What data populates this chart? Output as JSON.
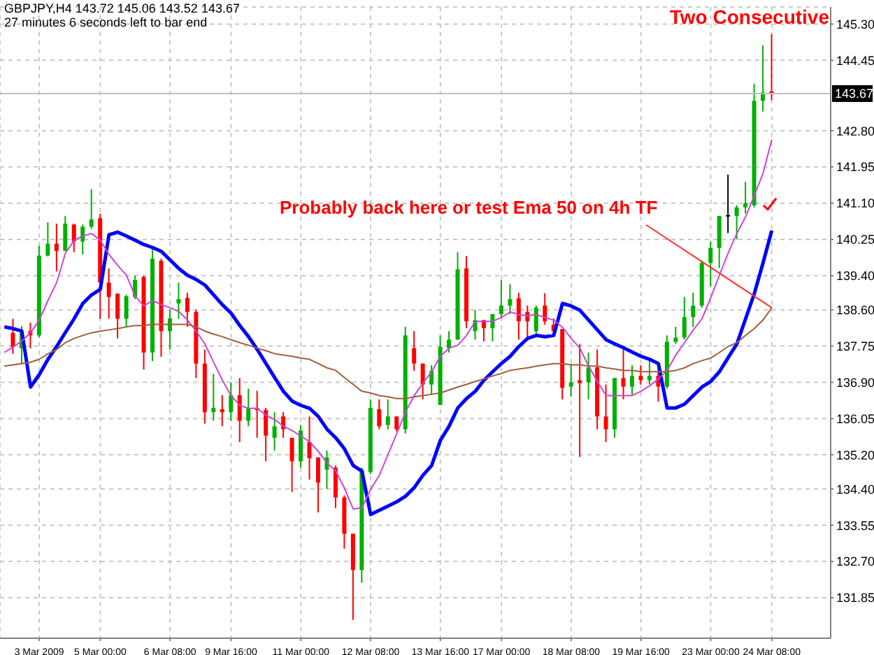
{
  "chart_data": {
    "type": "candlestick",
    "title": "GBPJPY,H4 143.72 145.06 143.52 143.67",
    "subtitle": "27 minutes 6 seconds left to bar end",
    "annotations": [
      "Two Consecutive",
      {
        "text": "Probably back here or test Ema 50 on 4h TF",
        "x": "24 Mar 08:00",
        "y": 138.65
      }
    ],
    "categories": [
      null,
      null,
      null,
      null,
      "3 Mar 2009",
      null,
      null,
      null,
      null,
      null,
      null,
      "5 Mar 00:00",
      null,
      null,
      null,
      null,
      null,
      null,
      null,
      "6 Mar 08:00",
      null,
      null,
      null,
      null,
      null,
      null,
      "9 Mar 16:00",
      null,
      null,
      null,
      null,
      null,
      null,
      null,
      "11 Mar 00:00",
      null,
      null,
      null,
      null,
      null,
      null,
      null,
      "12 Mar 08:00",
      null,
      null,
      null,
      null,
      null,
      null,
      null,
      "13 Mar 16:00",
      null,
      null,
      null,
      null,
      null,
      null,
      "17 Mar 00:00",
      null,
      null,
      null,
      null,
      null,
      null,
      null,
      "18 Mar 08:00",
      null,
      null,
      null,
      null,
      null,
      null,
      null,
      "19 Mar 16:00",
      null,
      null,
      null,
      null,
      null,
      null,
      null,
      "23 Mar 00:00",
      null,
      null,
      null,
      null,
      null,
      null,
      "24 Mar 08:00"
    ],
    "series": [
      {
        "type": "line",
        "color": "#0000ff",
        "values": [
          138.2,
          138.16,
          138.1,
          136.79,
          137.08,
          137.44,
          137.74,
          138.07,
          138.39,
          138.75,
          138.95,
          139.08,
          140.36,
          140.42,
          140.33,
          140.23,
          140.13,
          140.06,
          139.97,
          139.77,
          139.57,
          139.41,
          139.31,
          139.18,
          138.95,
          138.72,
          138.52,
          138.23,
          137.97,
          137.67,
          137.34,
          137.01,
          136.69,
          136.46,
          136.36,
          136.29,
          136.1,
          135.8,
          135.6,
          135.34,
          134.95,
          134.82,
          133.8,
          133.9,
          134.0,
          134.1,
          134.23,
          134.43,
          134.72,
          134.95,
          135.54,
          135.87,
          136.3,
          136.52,
          136.69,
          136.95,
          137.15,
          137.34,
          137.51,
          137.74,
          137.93,
          138.0,
          137.97,
          138.0,
          138.75,
          138.69,
          138.59,
          138.36,
          138.13,
          137.9,
          137.8,
          137.71,
          137.61,
          137.51,
          137.44,
          137.34,
          136.3,
          136.3,
          136.39,
          136.59,
          136.79,
          136.92,
          137.15,
          137.48,
          137.8,
          138.39,
          138.98,
          139.7,
          140.46
        ]
      },
      {
        "type": "line",
        "color": "#cc44dd",
        "values": [
          137.6,
          137.73,
          137.87,
          138.06,
          138.36,
          138.82,
          139.24,
          139.93,
          140.23,
          140.33,
          140.39,
          140.23,
          139.9,
          139.64,
          139.41,
          138.92,
          138.69,
          138.82,
          138.72,
          138.65,
          138.56,
          138.36,
          138.1,
          137.8,
          137.37,
          136.95,
          136.59,
          136.36,
          136.29,
          136.29,
          136.13,
          136.03,
          135.87,
          135.77,
          135.64,
          135.51,
          135.28,
          135.01,
          134.82,
          134.42,
          133.93,
          133.96,
          134.39,
          134.72,
          135.21,
          135.7,
          136.2,
          136.59,
          136.88,
          137.15,
          137.51,
          137.7,
          137.77,
          138.0,
          138.33,
          138.33,
          138.33,
          138.42,
          138.55,
          138.49,
          138.46,
          138.49,
          138.42,
          138.36,
          138.19,
          137.93,
          137.7,
          137.28,
          136.92,
          136.59,
          136.59,
          136.59,
          136.59,
          136.69,
          136.82,
          136.98,
          137.18,
          137.54,
          137.83,
          138.13,
          138.39,
          138.88,
          139.41,
          139.93,
          140.39,
          140.78,
          141.28,
          141.8,
          142.59
        ]
      },
      {
        "type": "line",
        "color": "#a0603c",
        "values": [
          137.28,
          137.31,
          137.34,
          137.37,
          137.44,
          137.57,
          137.67,
          137.83,
          137.93,
          138.0,
          138.06,
          138.1,
          138.13,
          138.16,
          138.2,
          138.23,
          138.23,
          138.26,
          138.26,
          138.26,
          138.26,
          138.26,
          138.2,
          138.1,
          138.03,
          137.97,
          137.9,
          137.83,
          137.77,
          137.7,
          137.64,
          137.57,
          137.54,
          137.51,
          137.47,
          137.44,
          137.34,
          137.24,
          137.18,
          137.01,
          136.85,
          136.69,
          136.65,
          136.59,
          136.56,
          136.52,
          136.52,
          136.56,
          136.59,
          136.62,
          136.65,
          136.72,
          136.79,
          136.85,
          136.92,
          136.98,
          137.05,
          137.11,
          137.18,
          137.21,
          137.24,
          137.28,
          137.31,
          137.34,
          137.34,
          137.31,
          137.31,
          137.28,
          137.28,
          137.24,
          137.21,
          137.18,
          137.18,
          137.15,
          137.15,
          137.15,
          137.15,
          137.18,
          137.24,
          137.34,
          137.41,
          137.47,
          137.6,
          137.74,
          137.83,
          138.0,
          138.16,
          138.36,
          138.65
        ]
      },
      {
        "ohlc": [
          null,
          [
            138.06,
            138.39,
            137.57,
            137.73
          ],
          [
            137.7,
            138.22,
            137.34,
            138.06
          ],
          [
            138.1,
            138.3,
            137.7,
            138.0
          ],
          [
            138.0,
            140.1,
            137.95,
            139.87
          ],
          [
            139.87,
            140.65,
            139.85,
            140.15
          ],
          [
            140.15,
            140.62,
            139.5,
            139.98
          ],
          [
            139.98,
            140.8,
            139.98,
            140.62
          ],
          [
            140.6,
            140.62,
            139.95,
            140.2
          ],
          [
            140.2,
            140.6,
            139.9,
            140.55
          ],
          [
            140.55,
            141.43,
            140.5,
            140.72
          ],
          [
            140.75,
            140.85,
            138.39,
            139.24
          ],
          [
            139.24,
            139.57,
            138.39,
            138.9
          ],
          [
            138.98,
            138.98,
            137.93,
            138.39
          ],
          [
            138.39,
            138.95,
            138.2,
            138.92
          ],
          [
            138.9,
            139.4,
            138.85,
            139.3
          ],
          [
            139.37,
            139.4,
            137.2,
            137.6
          ],
          [
            137.6,
            140.03,
            137.4,
            139.8
          ],
          [
            139.75,
            139.8,
            137.5,
            138.1
          ],
          [
            138.1,
            138.6,
            137.67,
            138.4
          ],
          [
            138.75,
            139.24,
            138.39,
            138.85
          ],
          [
            138.88,
            139.0,
            138.2,
            138.55
          ],
          [
            138.55,
            138.6,
            137.0,
            137.34
          ],
          [
            137.34,
            137.67,
            135.93,
            136.2
          ],
          [
            136.2,
            137.1,
            136.0,
            136.3
          ],
          [
            136.27,
            136.6,
            135.87,
            136.2
          ],
          [
            136.2,
            136.9,
            136.0,
            136.6
          ],
          [
            136.6,
            137.0,
            135.5,
            136.0
          ],
          [
            136.0,
            136.75,
            135.87,
            136.3
          ],
          [
            136.3,
            136.7,
            135.6,
            136.25
          ],
          [
            136.25,
            136.3,
            135.05,
            135.65
          ],
          [
            135.6,
            136.2,
            135.3,
            135.87
          ],
          [
            136.1,
            136.2,
            135.6,
            135.8
          ],
          [
            135.6,
            135.6,
            134.33,
            135.05
          ],
          [
            135.05,
            135.9,
            134.9,
            135.77
          ],
          [
            135.5,
            136.1,
            134.62,
            135.12
          ],
          [
            135.14,
            135.14,
            133.85,
            134.55
          ],
          [
            134.85,
            135.3,
            134.4,
            135.14
          ],
          [
            134.9,
            134.95,
            133.95,
            134.2
          ],
          [
            134.2,
            134.25,
            133.0,
            133.35
          ],
          [
            133.35,
            133.35,
            131.33,
            132.5
          ],
          [
            132.5,
            134.9,
            132.2,
            134.85
          ],
          [
            134.8,
            136.5,
            134.75,
            136.3
          ],
          [
            136.27,
            136.5,
            135.8,
            135.87
          ],
          [
            135.9,
            136.5,
            135.8,
            136.1
          ],
          [
            136.1,
            136.1,
            135.75,
            135.8
          ],
          [
            135.8,
            138.2,
            135.7,
            138.0
          ],
          [
            137.7,
            138.1,
            137.17,
            137.34
          ],
          [
            137.34,
            137.34,
            136.5,
            136.85
          ],
          [
            136.85,
            137.3,
            136.6,
            137.17
          ],
          [
            136.37,
            138.0,
            136.37,
            137.73
          ],
          [
            137.7,
            138.1,
            137.6,
            137.9
          ],
          [
            137.9,
            139.95,
            137.9,
            139.55
          ],
          [
            139.57,
            139.86,
            138.17,
            138.33
          ],
          [
            138.1,
            138.6,
            137.9,
            138.36
          ],
          [
            138.36,
            138.36,
            137.86,
            138.17
          ],
          [
            138.17,
            138.5,
            137.86,
            138.5
          ],
          [
            138.5,
            139.3,
            138.4,
            138.7
          ],
          [
            138.7,
            139.2,
            138.5,
            138.85
          ],
          [
            138.87,
            139.0,
            137.9,
            138.33
          ],
          [
            138.55,
            138.7,
            137.94,
            138.33
          ],
          [
            138.1,
            138.7,
            138.0,
            138.65
          ],
          [
            138.7,
            138.99,
            138.25,
            138.33
          ],
          [
            138.25,
            138.4,
            138.0,
            138.1
          ],
          [
            138.15,
            138.15,
            136.5,
            136.77
          ],
          [
            136.8,
            137.34,
            136.57,
            136.9
          ],
          [
            136.95,
            137.8,
            135.15,
            136.88
          ],
          [
            136.9,
            137.6,
            136.5,
            137.25
          ],
          [
            137.25,
            137.67,
            135.8,
            136.1
          ],
          [
            136.1,
            136.85,
            135.5,
            135.8
          ],
          [
            135.8,
            137.0,
            135.6,
            137.0
          ],
          [
            137.0,
            137.67,
            136.5,
            136.8
          ],
          [
            136.8,
            137.3,
            136.6,
            137.05
          ],
          [
            137.05,
            137.3,
            136.85,
            136.95
          ],
          [
            136.95,
            137.4,
            136.85,
            137.05
          ],
          [
            137.05,
            137.3,
            136.45,
            136.8
          ],
          [
            136.8,
            138.0,
            136.75,
            137.85
          ],
          [
            137.85,
            138.2,
            137.8,
            137.95
          ],
          [
            137.95,
            138.9,
            137.9,
            138.43
          ],
          [
            138.43,
            139.0,
            138.2,
            138.7
          ],
          [
            138.7,
            139.75,
            138.65,
            139.7
          ],
          [
            139.7,
            140.2,
            139.15,
            140.05
          ],
          [
            140.05,
            140.8,
            139.58,
            140.8
          ],
          [
            140.8,
            141.77,
            140.4,
            140.82
          ],
          [
            140.8,
            141.05,
            140.25,
            141.0
          ],
          [
            141.0,
            141.6,
            140.86,
            141.1
          ],
          [
            141.05,
            143.9,
            141.0,
            143.5
          ],
          [
            143.5,
            144.8,
            143.25,
            143.7
          ],
          [
            143.72,
            145.06,
            143.52,
            143.67
          ]
        ],
        "colors": [
          null,
          "#ff0000",
          "#00b000",
          "#ff0000",
          "#00b000",
          "#00b000",
          "#ff0000",
          "#00b000",
          "#ff0000",
          "#00b000",
          "#00b000",
          "#ff0000",
          "#ff0000",
          "#ff0000",
          "#00b000",
          "#00b000",
          "#ff0000",
          "#00b000",
          "#ff0000",
          "#00b000",
          "#00b000",
          "#ff0000",
          "#ff0000",
          "#ff0000",
          "#00b000",
          "#ff0000",
          "#00b000",
          "#ff0000",
          "#00b000",
          "#ff0000",
          "#ff0000",
          "#00b000",
          "#ff0000",
          "#ff0000",
          "#00b000",
          "#ff0000",
          "#ff0000",
          "#00b000",
          "#ff0000",
          "#ff0000",
          "#ff0000",
          "#00b000",
          "#00b000",
          "#ff0000",
          "#00b000",
          "#ff0000",
          "#00b000",
          "#ff0000",
          "#ff0000",
          "#00b000",
          "#00b000",
          "#00b000",
          "#00b000",
          "#ff0000",
          "#00b000",
          "#ff0000",
          "#00b000",
          "#00b000",
          "#00b000",
          "#ff0000",
          "#ff0000",
          "#00b000",
          "#ff0000",
          "#ff0000",
          "#ff0000",
          "#00b000",
          "#ff0000",
          "#00b000",
          "#ff0000",
          "#ff0000",
          "#00b000",
          "#ff0000",
          "#00b000",
          "#ff0000",
          "#00b000",
          "#ff0000",
          "#00b000",
          "#00b000",
          "#00b000",
          "#00b000",
          "#00b000",
          "#00b000",
          "#00b000",
          "#000000",
          "#00b000",
          "#00b000",
          "#00b000",
          "#00b000",
          "#ff0000"
        ]
      }
    ],
    "ylim": [
      130.9,
      145.7
    ],
    "yticks": [
      {
        "value": 131.85,
        "label": "131.85"
      },
      {
        "value": 132.7,
        "label": "132.70"
      },
      {
        "value": 133.55,
        "label": "133.55"
      },
      {
        "value": 134.4,
        "label": "134.40"
      },
      {
        "value": 135.2,
        "label": "135.20"
      },
      {
        "value": 136.05,
        "label": "136.05"
      },
      {
        "value": 136.9,
        "label": "136.90"
      },
      {
        "value": 137.75,
        "label": "137.75"
      },
      {
        "value": 138.6,
        "label": "138.60"
      },
      {
        "value": 139.4,
        "label": "139.40"
      },
      {
        "value": 140.25,
        "label": "140.25"
      },
      {
        "value": 141.1,
        "label": "141.10"
      },
      {
        "value": 141.95,
        "label": "141.95"
      },
      {
        "value": 142.8,
        "label": "142.80"
      },
      {
        "value": 144.45,
        "label": "144.45"
      },
      {
        "value": 145.3,
        "label": "145.30"
      }
    ],
    "ref_lines": [
      {
        "axis": "y",
        "value": 143.67,
        "label": "143.67",
        "color": "#c0c0c0"
      }
    ],
    "grid": true
  }
}
